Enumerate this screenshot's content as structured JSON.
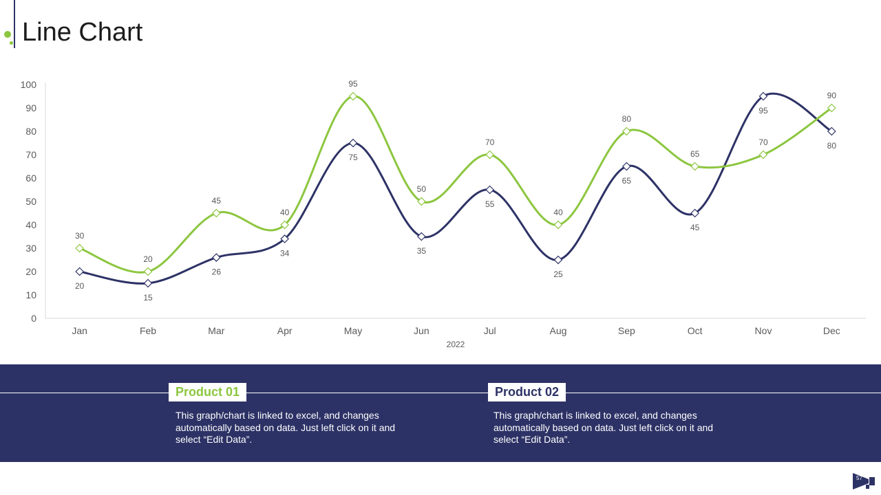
{
  "page": {
    "title": "Line Chart",
    "slide_number": "57"
  },
  "products": [
    {
      "label": "Product 01",
      "description": "This graph/chart is linked to excel, and changes automatically based on data. Just left click on it and select “Edit Data”."
    },
    {
      "label": "Product 02",
      "description": "This graph/chart is linked to excel, and changes automatically based on data. Just left click on it and select “Edit Data”."
    }
  ],
  "colors": {
    "green": "#8cc63f",
    "navy": "#2d3266",
    "axis_text": "#595959"
  },
  "chart_data": {
    "type": "line",
    "smooth": true,
    "markers": "diamond",
    "xlabel": "2022",
    "ylabel": "",
    "ylim": [
      0,
      100
    ],
    "yticks": [
      0,
      10,
      20,
      30,
      40,
      50,
      60,
      70,
      80,
      90,
      100
    ],
    "grid": false,
    "legend": "none",
    "categories": [
      "Jan",
      "Feb",
      "Mar",
      "Apr",
      "May",
      "Jun",
      "Jul",
      "Aug",
      "Sep",
      "Oct",
      "Nov",
      "Dec"
    ],
    "series": [
      {
        "color": "#8cc63f",
        "label_position": "above",
        "values": [
          30,
          20,
          45,
          40,
          95,
          50,
          70,
          40,
          80,
          65,
          70,
          90
        ]
      },
      {
        "color": "#2d3266",
        "label_position": "below",
        "values": [
          20,
          15,
          26,
          34,
          75,
          35,
          55,
          25,
          65,
          45,
          95,
          80
        ]
      }
    ]
  }
}
